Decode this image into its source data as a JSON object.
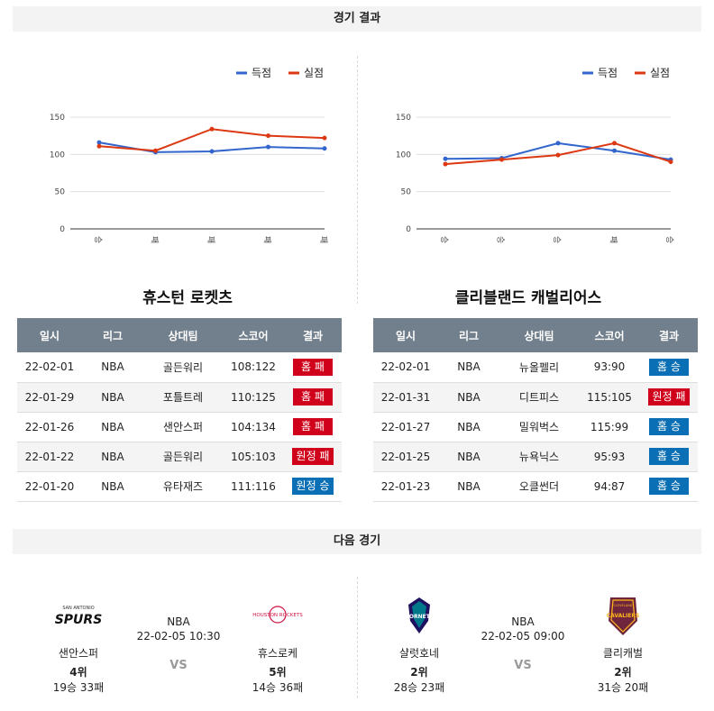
{
  "sections": {
    "results_title": "경기 결과",
    "next_title": "다음 경기"
  },
  "legend": {
    "scored": "득점",
    "conceded": "실점"
  },
  "colors": {
    "scored": "#3366cc",
    "conceded": "#dc3912",
    "loss": "#d0021b",
    "win": "#0a6fb5",
    "header": "#727f8c"
  },
  "chart_data": [
    {
      "type": "line",
      "categories": [
        "승",
        "패",
        "패",
        "패",
        "패"
      ],
      "ylim": [
        0,
        150
      ],
      "yticks": [
        0,
        50,
        100,
        150
      ],
      "series": [
        {
          "name": "득점",
          "values": [
            116,
            103,
            104,
            110,
            108
          ]
        },
        {
          "name": "실점",
          "values": [
            111,
            105,
            134,
            125,
            122
          ]
        }
      ]
    },
    {
      "type": "line",
      "categories": [
        "승",
        "승",
        "승",
        "패",
        "승"
      ],
      "ylim": [
        0,
        150
      ],
      "yticks": [
        0,
        50,
        100,
        150
      ],
      "series": [
        {
          "name": "득점",
          "values": [
            94,
            95,
            115,
            105,
            93
          ]
        },
        {
          "name": "실점",
          "values": [
            87,
            93,
            99,
            115,
            90
          ]
        }
      ]
    }
  ],
  "teams": [
    {
      "title": "휴스턴 로켓츠",
      "headers": [
        "일시",
        "리그",
        "상대팀",
        "스코어",
        "결과"
      ],
      "rows": [
        {
          "date": "22-02-01",
          "league": "NBA",
          "opponent": "골든워리",
          "score": "108:122",
          "result": "홈 패",
          "type": "loss"
        },
        {
          "date": "22-01-29",
          "league": "NBA",
          "opponent": "포틀트레",
          "score": "110:125",
          "result": "홈 패",
          "type": "loss"
        },
        {
          "date": "22-01-26",
          "league": "NBA",
          "opponent": "샌안스퍼",
          "score": "104:134",
          "result": "홈 패",
          "type": "loss"
        },
        {
          "date": "22-01-22",
          "league": "NBA",
          "opponent": "골든워리",
          "score": "105:103",
          "result": "원정 패",
          "type": "loss"
        },
        {
          "date": "22-01-20",
          "league": "NBA",
          "opponent": "유타재즈",
          "score": "111:116",
          "result": "원정 승",
          "type": "win"
        }
      ]
    },
    {
      "title": "클리블랜드 캐벌리어스",
      "headers": [
        "일시",
        "리그",
        "상대팀",
        "스코어",
        "결과"
      ],
      "rows": [
        {
          "date": "22-02-01",
          "league": "NBA",
          "opponent": "뉴올펠리",
          "score": "93:90",
          "result": "홈 승",
          "type": "win"
        },
        {
          "date": "22-01-31",
          "league": "NBA",
          "opponent": "디트피스",
          "score": "115:105",
          "result": "원정 패",
          "type": "loss"
        },
        {
          "date": "22-01-27",
          "league": "NBA",
          "opponent": "밀워벅스",
          "score": "115:99",
          "result": "홈 승",
          "type": "win"
        },
        {
          "date": "22-01-25",
          "league": "NBA",
          "opponent": "뉴욕닉스",
          "score": "95:93",
          "result": "홈 승",
          "type": "win"
        },
        {
          "date": "22-01-23",
          "league": "NBA",
          "opponent": "오클썬더",
          "score": "94:87",
          "result": "홈 승",
          "type": "win"
        }
      ]
    }
  ],
  "next_matches": [
    {
      "league": "NBA",
      "datetime": "22-02-05 10:30",
      "vs": "VS",
      "away": {
        "name": "샌안스퍼",
        "rank": "4위",
        "record": "19승 33패",
        "logo_text": "SPURS",
        "logo_sub": "SAN ANTONIO"
      },
      "home": {
        "name": "휴스로케",
        "rank": "5위",
        "record": "14승 36패",
        "logo_text": "HOUSTON ROCKETS"
      }
    },
    {
      "league": "NBA",
      "datetime": "22-02-05 09:00",
      "vs": "VS",
      "away": {
        "name": "샬럿호네",
        "rank": "2위",
        "record": "28승 23패",
        "logo_text": "HORNETS"
      },
      "home": {
        "name": "클리캐벌",
        "rank": "2위",
        "record": "31승 20패",
        "logo_text": "CAVALIERS",
        "logo_sub": "CLEVELAND"
      }
    }
  ]
}
